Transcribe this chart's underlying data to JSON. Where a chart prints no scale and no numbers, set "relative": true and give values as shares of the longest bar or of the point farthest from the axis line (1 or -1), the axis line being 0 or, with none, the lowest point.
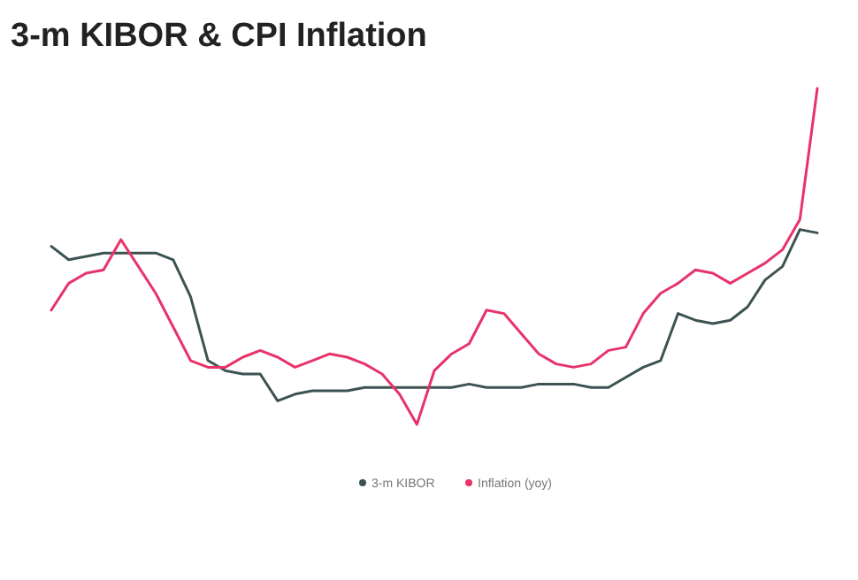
{
  "chart_data": {
    "type": "line",
    "title": "3-m KIBOR & CPI Inflation",
    "relative": true,
    "legend": "bottom",
    "categories": [
      null,
      null,
      null,
      null,
      null,
      null,
      null,
      null,
      null,
      null,
      null,
      null,
      null,
      null,
      null,
      null,
      null,
      null,
      null,
      null,
      null,
      null,
      null,
      null,
      null,
      null,
      null,
      null,
      null,
      null,
      null,
      null,
      null,
      null,
      null,
      null,
      null,
      null,
      null,
      null,
      null,
      null,
      null,
      null,
      null
    ],
    "series": [
      {
        "name": "3-m KIBOR",
        "color": "#3d5252",
        "values": [
          0.53,
          0.49,
          0.5,
          0.51,
          0.51,
          0.51,
          0.51,
          0.49,
          0.38,
          0.19,
          0.16,
          0.15,
          0.15,
          0.07,
          0.09,
          0.1,
          0.1,
          0.1,
          0.11,
          0.11,
          0.11,
          0.11,
          0.11,
          0.11,
          0.12,
          0.11,
          0.11,
          0.11,
          0.12,
          0.12,
          0.12,
          0.11,
          0.11,
          0.14,
          0.17,
          0.19,
          0.33,
          0.31,
          0.3,
          0.31,
          0.35,
          0.43,
          0.47,
          0.58,
          0.57
        ]
      },
      {
        "name": "Inflation (yoy)",
        "color": "#e8336a",
        "values": [
          0.34,
          0.42,
          0.45,
          0.46,
          0.55,
          0.47,
          0.39,
          0.29,
          0.19,
          0.17,
          0.17,
          0.2,
          0.22,
          0.2,
          0.17,
          0.19,
          0.21,
          0.2,
          0.18,
          0.15,
          0.09,
          0,
          0.16,
          0.21,
          0.24,
          0.34,
          0.33,
          0.27,
          0.21,
          0.18,
          0.17,
          0.18,
          0.22,
          0.23,
          0.33,
          0.39,
          0.42,
          0.46,
          0.45,
          0.42,
          0.45,
          0.48,
          0.52,
          0.61,
          1
        ]
      }
    ]
  }
}
